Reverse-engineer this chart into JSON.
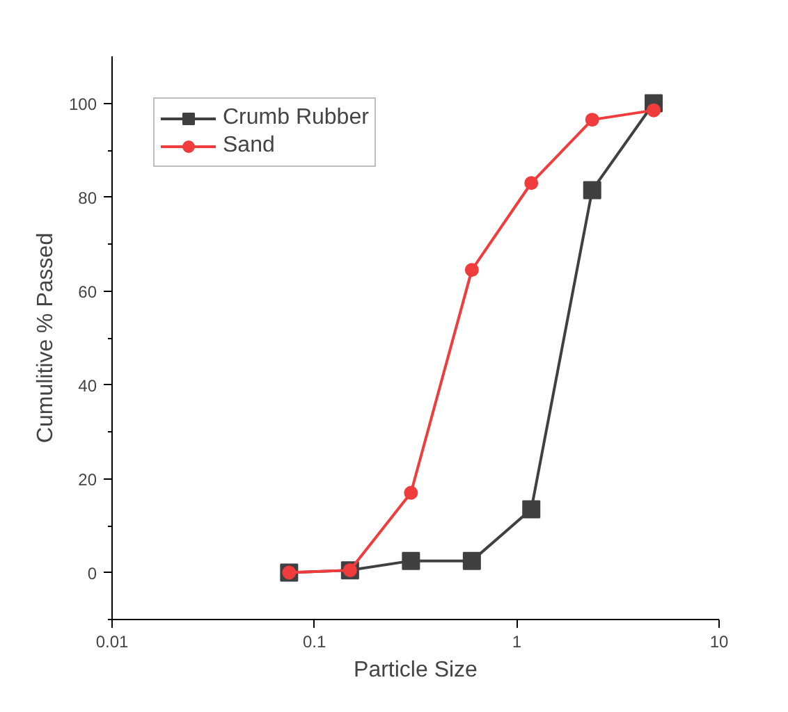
{
  "chart_data": {
    "type": "line",
    "xlabel": "Particle Size",
    "ylabel": "Cumulitive % Passed",
    "x": [
      0.075,
      0.15,
      0.3,
      0.6,
      1.18,
      2.36,
      4.75
    ],
    "series": [
      {
        "name": "Crumb Rubber",
        "color": "#404040",
        "marker": "square",
        "values": [
          0,
          0.5,
          2.5,
          2.5,
          13.5,
          81.5,
          100
        ]
      },
      {
        "name": "Sand",
        "color": "#f03c3c",
        "marker": "circle",
        "values": [
          0,
          0.5,
          17,
          64.5,
          83,
          96.5,
          98.5
        ]
      }
    ],
    "log": "x",
    "xlim": [
      0.01,
      10
    ],
    "xticks": [
      0.01,
      0.1,
      1,
      10
    ],
    "ylim": [
      -10,
      110
    ],
    "yticks": [
      0,
      20,
      40,
      60,
      80,
      100
    ],
    "grid": false,
    "legend": "top left",
    "line_style": "solid"
  }
}
